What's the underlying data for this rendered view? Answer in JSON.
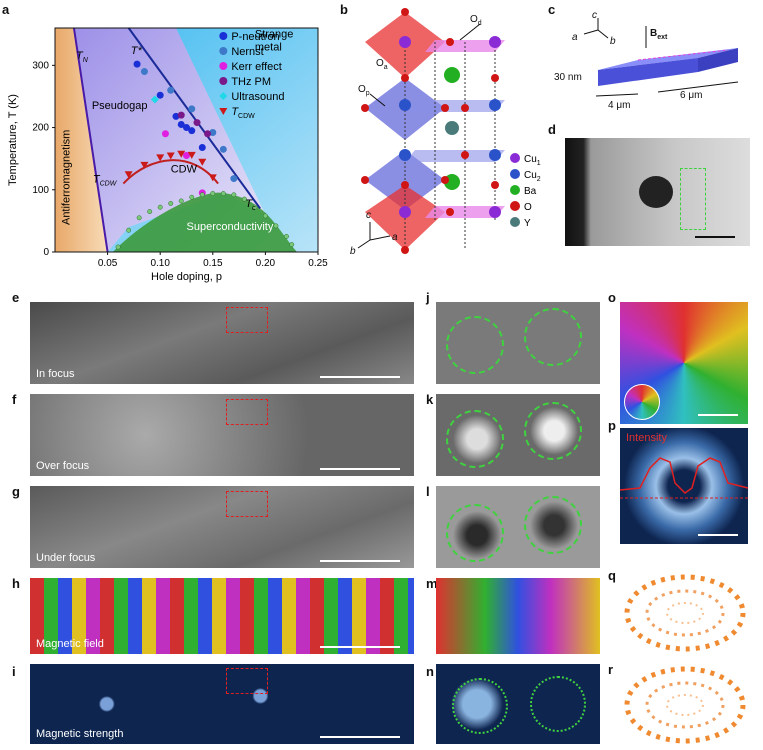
{
  "panel_letters": {
    "a": "a",
    "b": "b",
    "c": "c",
    "d": "d",
    "e": "e",
    "f": "f",
    "g": "g",
    "h": "h",
    "i": "i",
    "j": "j",
    "k": "k",
    "l": "l",
    "m": "m",
    "n": "n",
    "o": "o",
    "p": "p",
    "q": "q",
    "r": "r"
  },
  "chart_data": {
    "type": "scatter",
    "xlabel": "Hole doping, p",
    "ylabel": "Temperature, T (K)",
    "xlim": [
      0,
      0.25
    ],
    "ylim": [
      0,
      360
    ],
    "xticks": [
      "0.05",
      "0.10",
      "0.15",
      "0.20",
      "0.25"
    ],
    "yticks": [
      "0",
      "100",
      "200",
      "300"
    ],
    "regions": {
      "af": "Antiferromagnetism",
      "pg": "Pseudogap",
      "cdw": "CDW",
      "sc": "Superconductivity",
      "sm": "Strange\nmetal"
    },
    "line_labels": {
      "tn": "T",
      "tn_sub": "N",
      "tstar": "T*",
      "tc": "T",
      "tc_sub": "c",
      "tcdw": "T",
      "tcdw_sub": "CDW"
    },
    "legend": [
      {
        "label": "P-neutron",
        "color": "#1a2fd6",
        "marker": "circle"
      },
      {
        "label": "Nernst",
        "color": "#3d78c9",
        "marker": "circle"
      },
      {
        "label": "Kerr effect",
        "color": "#e020e0",
        "marker": "circle"
      },
      {
        "label": "THz PM",
        "color": "#7a1a8a",
        "marker": "circle"
      },
      {
        "label": "Ultrasound",
        "color": "#20d8e8",
        "marker": "diamond"
      },
      {
        "label": "T",
        "sub": "CDW",
        "color": "#cc1a1a",
        "marker": "triangle"
      }
    ],
    "series": [
      {
        "name": "P-neutron",
        "values": [
          [
            0.078,
            302
          ],
          [
            0.1,
            252
          ],
          [
            0.115,
            218
          ],
          [
            0.12,
            205
          ],
          [
            0.125,
            200
          ],
          [
            0.13,
            195
          ],
          [
            0.14,
            168
          ]
        ]
      },
      {
        "name": "Nernst",
        "values": [
          [
            0.085,
            290
          ],
          [
            0.11,
            260
          ],
          [
            0.13,
            230
          ],
          [
            0.15,
            192
          ],
          [
            0.16,
            165
          ],
          [
            0.17,
            118
          ]
        ]
      },
      {
        "name": "Kerr effect",
        "values": [
          [
            0.105,
            190
          ],
          [
            0.125,
            155
          ],
          [
            0.14,
            95
          ]
        ]
      },
      {
        "name": "THz PM",
        "values": [
          [
            0.12,
            220
          ],
          [
            0.135,
            208
          ],
          [
            0.145,
            190
          ]
        ]
      },
      {
        "name": "Ultrasound",
        "values": [
          [
            0.095,
            245
          ]
        ]
      },
      {
        "name": "TCDW",
        "values": [
          [
            0.07,
            125
          ],
          [
            0.085,
            140
          ],
          [
            0.1,
            152
          ],
          [
            0.11,
            155
          ],
          [
            0.12,
            158
          ],
          [
            0.13,
            156
          ],
          [
            0.14,
            145
          ],
          [
            0.15,
            120
          ]
        ]
      },
      {
        "name": "Tc",
        "values": [
          [
            0.06,
            8
          ],
          [
            0.07,
            35
          ],
          [
            0.08,
            55
          ],
          [
            0.09,
            65
          ],
          [
            0.1,
            72
          ],
          [
            0.11,
            78
          ],
          [
            0.12,
            82
          ],
          [
            0.13,
            88
          ],
          [
            0.14,
            92
          ],
          [
            0.15,
            94
          ],
          [
            0.16,
            94
          ],
          [
            0.17,
            92
          ],
          [
            0.18,
            85
          ],
          [
            0.19,
            72
          ],
          [
            0.2,
            58
          ],
          [
            0.21,
            42
          ],
          [
            0.22,
            25
          ],
          [
            0.225,
            12
          ]
        ]
      }
    ]
  },
  "panel_b": {
    "labels": {
      "od": "O",
      "od_sub": "d",
      "oa": "O",
      "oa_sub": "a",
      "op": "O",
      "op_sub": "p",
      "c": "c",
      "a": "a",
      "b": "b"
    },
    "legend": [
      {
        "label": "Cu",
        "sub": "1",
        "color": "#8a2bd6"
      },
      {
        "label": "Cu",
        "sub": "2",
        "color": "#2a52c9"
      },
      {
        "label": "Ba",
        "color": "#22b022"
      },
      {
        "label": "O",
        "color": "#d01515"
      },
      {
        "label": "Y",
        "color": "#4a7a7a"
      }
    ]
  },
  "panel_c": {
    "c": "c",
    "a": "a",
    "b": "b",
    "bext": "B",
    "bext_sub": "ext",
    "thick": "30 nm",
    "w1": "4 μm",
    "w2": "6 μm"
  },
  "panel_e": {
    "label": "In focus"
  },
  "panel_f": {
    "label": "Over focus"
  },
  "panel_g": {
    "label": "Under focus"
  },
  "panel_h": {
    "label": "Magnetic field"
  },
  "panel_i": {
    "label": "Magnetic strength"
  },
  "panel_p": {
    "label": "Intensity"
  },
  "colors": {
    "accent_red": "#e02020",
    "dash_green": "#3fd23f"
  }
}
